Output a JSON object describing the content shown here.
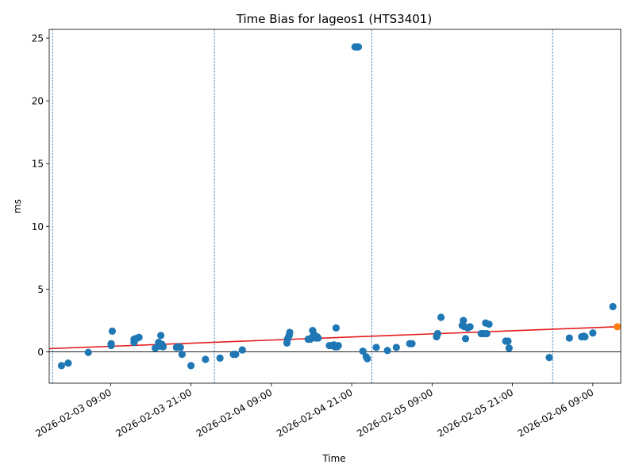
{
  "chart_data": {
    "type": "scatter",
    "title": "Time Bias for lageos1 (HTS3401)",
    "xlabel": "Time",
    "ylabel": "ms",
    "xlim": [
      "2026-02-02 23:50",
      "2026-02-06 13:10"
    ],
    "ylim": [
      -2.5,
      25.7
    ],
    "x_ticks": [
      "2026-02-03 09:00",
      "2026-02-03 21:00",
      "2026-02-04 09:00",
      "2026-02-04 21:00",
      "2026-02-05 09:00",
      "2026-02-05 21:00",
      "2026-02-06 09:00"
    ],
    "y_ticks": [
      0,
      5,
      10,
      15,
      20,
      25
    ],
    "grid": false,
    "zero_line": true,
    "vlines": [
      "2026-02-03 00:20",
      "2026-02-04 00:30",
      "2026-02-05 00:00",
      "2026-02-06 03:00"
    ],
    "series": [
      {
        "color": "#1f77b4",
        "points": [
          [
            "2026-02-03 01:40",
            -1.1
          ],
          [
            "2026-02-03 02:40",
            -0.9
          ],
          [
            "2026-02-03 05:40",
            -0.05
          ],
          [
            "2026-02-03 09:05",
            0.65
          ],
          [
            "2026-02-03 09:05",
            0.5
          ],
          [
            "2026-02-03 09:15",
            1.65
          ],
          [
            "2026-02-03 12:30",
            0.75
          ],
          [
            "2026-02-03 12:30",
            1.0
          ],
          [
            "2026-02-03 12:45",
            1.05
          ],
          [
            "2026-02-03 13:00",
            1.1
          ],
          [
            "2026-02-03 13:15",
            1.15
          ],
          [
            "2026-02-03 15:40",
            0.3
          ],
          [
            "2026-02-03 16:10",
            0.75
          ],
          [
            "2026-02-03 16:20",
            0.45
          ],
          [
            "2026-02-03 16:30",
            1.3
          ],
          [
            "2026-02-03 16:40",
            0.6
          ],
          [
            "2026-02-03 16:50",
            0.4
          ],
          [
            "2026-02-03 18:50",
            0.35
          ],
          [
            "2026-02-03 19:10",
            0.4
          ],
          [
            "2026-02-03 19:25",
            0.35
          ],
          [
            "2026-02-03 19:40",
            -0.2
          ],
          [
            "2026-02-03 21:00",
            -1.1
          ],
          [
            "2026-02-03 23:10",
            -0.6
          ],
          [
            "2026-02-04 01:20",
            -0.5
          ],
          [
            "2026-02-04 03:20",
            -0.2
          ],
          [
            "2026-02-04 03:40",
            -0.2
          ],
          [
            "2026-02-04 04:40",
            0.15
          ],
          [
            "2026-02-04 11:20",
            0.7
          ],
          [
            "2026-02-04 11:25",
            1.0
          ],
          [
            "2026-02-04 11:30",
            1.1
          ],
          [
            "2026-02-04 11:40",
            1.3
          ],
          [
            "2026-02-04 11:45",
            1.55
          ],
          [
            "2026-02-04 14:30",
            1.0
          ],
          [
            "2026-02-04 14:50",
            1.0
          ],
          [
            "2026-02-04 15:00",
            1.1
          ],
          [
            "2026-02-04 15:10",
            1.7
          ],
          [
            "2026-02-04 15:20",
            1.4
          ],
          [
            "2026-02-04 15:30",
            1.2
          ],
          [
            "2026-02-04 15:40",
            1.1
          ],
          [
            "2026-02-04 15:50",
            1.2
          ],
          [
            "2026-02-04 16:00",
            1.1
          ],
          [
            "2026-02-04 17:40",
            0.5
          ],
          [
            "2026-02-04 18:00",
            0.5
          ],
          [
            "2026-02-04 18:20",
            0.55
          ],
          [
            "2026-02-04 18:30",
            0.4
          ],
          [
            "2026-02-04 18:40",
            1.9
          ],
          [
            "2026-02-04 18:50",
            0.4
          ],
          [
            "2026-02-04 19:00",
            0.5
          ],
          [
            "2026-02-04 21:30",
            24.3
          ],
          [
            "2026-02-04 21:45",
            24.3
          ],
          [
            "2026-02-04 22:00",
            24.3
          ],
          [
            "2026-02-04 22:40",
            0.05
          ],
          [
            "2026-02-04 23:10",
            -0.4
          ],
          [
            "2026-02-04 23:20",
            -0.55
          ],
          [
            "2026-02-05 00:40",
            0.35
          ],
          [
            "2026-02-05 02:20",
            0.1
          ],
          [
            "2026-02-05 03:40",
            0.35
          ],
          [
            "2026-02-05 05:40",
            0.65
          ],
          [
            "2026-02-05 06:00",
            0.65
          ],
          [
            "2026-02-05 09:40",
            1.2
          ],
          [
            "2026-02-05 09:45",
            1.35
          ],
          [
            "2026-02-05 09:50",
            1.45
          ],
          [
            "2026-02-05 10:20",
            2.75
          ],
          [
            "2026-02-05 13:30",
            2.1
          ],
          [
            "2026-02-05 13:40",
            2.5
          ],
          [
            "2026-02-05 13:50",
            2.0
          ],
          [
            "2026-02-05 14:00",
            1.05
          ],
          [
            "2026-02-05 14:20",
            1.9
          ],
          [
            "2026-02-05 14:40",
            2.0
          ],
          [
            "2026-02-05 16:20",
            1.45
          ],
          [
            "2026-02-05 16:40",
            1.45
          ],
          [
            "2026-02-05 17:00",
            2.3
          ],
          [
            "2026-02-05 17:10",
            1.45
          ],
          [
            "2026-02-05 17:30",
            2.2
          ],
          [
            "2026-02-05 20:00",
            0.85
          ],
          [
            "2026-02-05 20:20",
            0.85
          ],
          [
            "2026-02-05 20:30",
            0.3
          ],
          [
            "2026-02-06 02:30",
            -0.45
          ],
          [
            "2026-02-06 05:30",
            1.1
          ],
          [
            "2026-02-06 07:20",
            1.2
          ],
          [
            "2026-02-06 07:40",
            1.25
          ],
          [
            "2026-02-06 07:50",
            1.2
          ],
          [
            "2026-02-06 09:00",
            1.5
          ],
          [
            "2026-02-06 12:00",
            3.6
          ]
        ]
      },
      {
        "color": "#ff7f0e",
        "points": [
          [
            "2026-02-06 12:40",
            2.0
          ]
        ]
      }
    ],
    "trend_line": {
      "color": "#e41a1c",
      "points": [
        [
          "2026-02-02 23:50",
          0.25
        ],
        [
          "2026-02-06 12:40",
          2.0
        ]
      ]
    }
  }
}
